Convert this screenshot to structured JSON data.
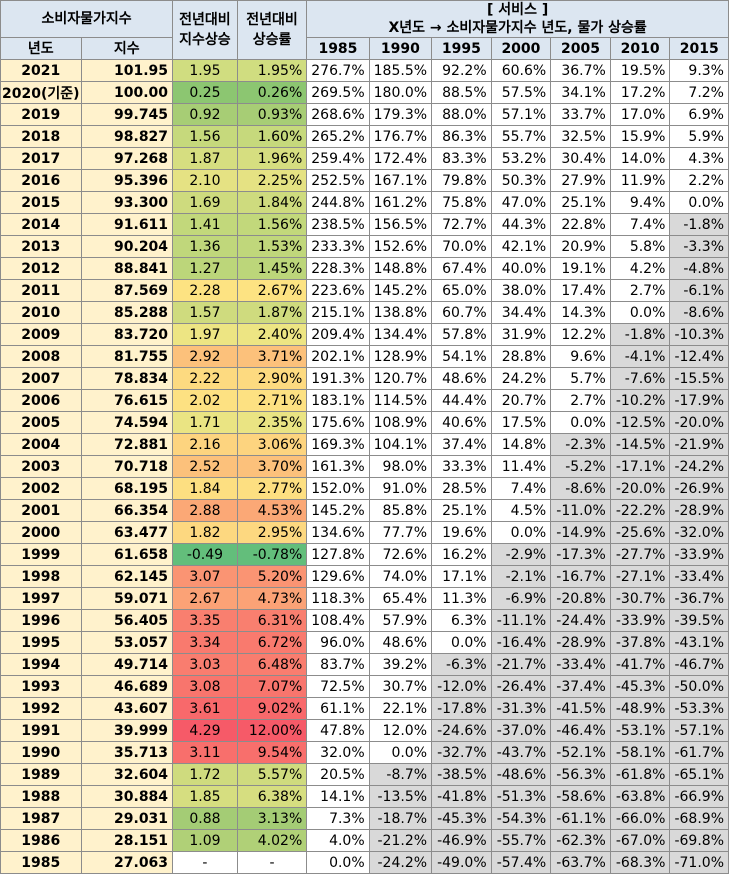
{
  "header": {
    "index_title": "소비자물가지수",
    "index_change_title": "전년대비\n지수상승",
    "rate_change_title": "전년대비\n상승률",
    "service_title": "[ 서비스 ]",
    "service_subtitle": "X년도 → 소비자물가지수 년도, 물가 상승률",
    "year_label": "년도",
    "index_label": "지수",
    "base_years": [
      "1985",
      "1990",
      "1995",
      "2000",
      "2005",
      "2010",
      "2015"
    ]
  },
  "rows": [
    {
      "year": "2021",
      "index": "101.95",
      "d": "1.95",
      "r": "1.95%",
      "bg": "#d0dd80",
      "v": [
        "276.7%",
        "185.5%",
        "92.2%",
        "60.6%",
        "36.7%",
        "19.5%",
        "9.3%"
      ]
    },
    {
      "year": "2020(기준)",
      "index": "100.00",
      "d": "0.25",
      "r": "0.26%",
      "bg": "#8cc671",
      "v": [
        "269.5%",
        "180.0%",
        "88.5%",
        "57.5%",
        "34.1%",
        "17.2%",
        "7.2%"
      ]
    },
    {
      "year": "2019",
      "index": "99.745",
      "d": "0.92",
      "r": "0.93%",
      "bg": "#a7cd75",
      "v": [
        "268.6%",
        "179.3%",
        "88.0%",
        "57.1%",
        "33.7%",
        "17.0%",
        "6.9%"
      ]
    },
    {
      "year": "2018",
      "index": "98.827",
      "d": "1.56",
      "r": "1.60%",
      "bg": "#c6d97c",
      "v": [
        "265.2%",
        "176.7%",
        "86.3%",
        "55.7%",
        "32.5%",
        "15.9%",
        "5.9%"
      ]
    },
    {
      "year": "2017",
      "index": "97.268",
      "d": "1.87",
      "r": "1.96%",
      "bg": "#d6de80",
      "v": [
        "259.4%",
        "172.4%",
        "83.3%",
        "53.2%",
        "30.4%",
        "14.0%",
        "4.3%"
      ]
    },
    {
      "year": "2016",
      "index": "95.396",
      "d": "2.10",
      "r": "2.25%",
      "bg": "#e5e283",
      "v": [
        "252.5%",
        "167.1%",
        "79.8%",
        "50.3%",
        "27.9%",
        "11.9%",
        "2.2%"
      ]
    },
    {
      "year": "2015",
      "index": "93.300",
      "d": "1.69",
      "r": "1.84%",
      "bg": "#cedb7e",
      "v": [
        "244.8%",
        "161.2%",
        "75.8%",
        "47.0%",
        "25.1%",
        "9.4%",
        "0.0%"
      ]
    },
    {
      "year": "2014",
      "index": "91.611",
      "d": "1.41",
      "r": "1.56%",
      "bg": "#c2d87b",
      "v": [
        "238.5%",
        "156.5%",
        "72.7%",
        "44.3%",
        "22.8%",
        "7.4%",
        "-1.8%"
      ]
    },
    {
      "year": "2013",
      "index": "90.204",
      "d": "1.36",
      "r": "1.53%",
      "bg": "#c0d77b",
      "v": [
        "233.3%",
        "152.6%",
        "70.0%",
        "42.1%",
        "20.9%",
        "5.8%",
        "-3.3%"
      ]
    },
    {
      "year": "2012",
      "index": "88.841",
      "d": "1.27",
      "r": "1.45%",
      "bg": "#bcd67a",
      "v": [
        "228.3%",
        "148.8%",
        "67.4%",
        "40.0%",
        "19.1%",
        "4.2%",
        "-4.8%"
      ]
    },
    {
      "year": "2011",
      "index": "87.569",
      "d": "2.28",
      "r": "2.67%",
      "bg": "#fde382",
      "v": [
        "223.6%",
        "145.2%",
        "65.0%",
        "38.0%",
        "17.4%",
        "2.7%",
        "-6.1%"
      ]
    },
    {
      "year": "2010",
      "index": "85.288",
      "d": "1.57",
      "r": "1.87%",
      "bg": "#cfdb7e",
      "v": [
        "215.1%",
        "138.8%",
        "60.7%",
        "34.4%",
        "14.3%",
        "0.0%",
        "-8.6%"
      ]
    },
    {
      "year": "2009",
      "index": "83.720",
      "d": "1.97",
      "r": "2.40%",
      "bg": "#ede583",
      "v": [
        "209.4%",
        "134.4%",
        "57.8%",
        "31.9%",
        "12.2%",
        "-1.8%",
        "-10.3%"
      ]
    },
    {
      "year": "2008",
      "index": "81.755",
      "d": "2.92",
      "r": "3.71%",
      "bg": "#fcc17b",
      "v": [
        "202.1%",
        "128.9%",
        "54.1%",
        "28.8%",
        "9.6%",
        "-4.1%",
        "-12.4%"
      ]
    },
    {
      "year": "2007",
      "index": "78.834",
      "d": "2.22",
      "r": "2.90%",
      "bg": "#fdda80",
      "v": [
        "191.3%",
        "120.7%",
        "48.6%",
        "24.2%",
        "5.7%",
        "-7.6%",
        "-15.5%"
      ]
    },
    {
      "year": "2006",
      "index": "76.615",
      "d": "2.02",
      "r": "2.71%",
      "bg": "#fde182",
      "v": [
        "183.1%",
        "114.5%",
        "44.4%",
        "20.7%",
        "2.7%",
        "-10.2%",
        "-17.9%"
      ]
    },
    {
      "year": "2005",
      "index": "74.594",
      "d": "1.71",
      "r": "2.35%",
      "bg": "#eae483",
      "v": [
        "175.6%",
        "108.9%",
        "40.6%",
        "17.5%",
        "0.0%",
        "-12.5%",
        "-20.0%"
      ]
    },
    {
      "year": "2004",
      "index": "72.881",
      "d": "2.16",
      "r": "3.06%",
      "bg": "#fdd47f",
      "v": [
        "169.3%",
        "104.1%",
        "37.4%",
        "14.8%",
        "-2.3%",
        "-14.5%",
        "-21.9%"
      ]
    },
    {
      "year": "2003",
      "index": "70.718",
      "d": "2.52",
      "r": "3.70%",
      "bg": "#fcc17b",
      "v": [
        "161.3%",
        "98.0%",
        "33.3%",
        "11.4%",
        "-5.2%",
        "-17.1%",
        "-24.2%"
      ]
    },
    {
      "year": "2002",
      "index": "68.195",
      "d": "1.84",
      "r": "2.77%",
      "bg": "#fddf81",
      "v": [
        "152.0%",
        "91.0%",
        "28.5%",
        "7.4%",
        "-8.6%",
        "-20.0%",
        "-26.9%"
      ]
    },
    {
      "year": "2001",
      "index": "66.354",
      "d": "2.88",
      "r": "4.53%",
      "bg": "#fba876",
      "v": [
        "145.2%",
        "85.8%",
        "25.1%",
        "4.5%",
        "-11.0%",
        "-22.2%",
        "-28.9%"
      ]
    },
    {
      "year": "2000",
      "index": "63.477",
      "d": "1.82",
      "r": "2.95%",
      "bg": "#fdd880",
      "v": [
        "134.6%",
        "77.7%",
        "19.6%",
        "0.0%",
        "-14.9%",
        "-25.6%",
        "-32.0%"
      ]
    },
    {
      "year": "1999",
      "index": "61.658",
      "d": "-0.49",
      "r": "-0.78%",
      "bg": "#63be7b",
      "v": [
        "127.8%",
        "72.6%",
        "16.2%",
        "-2.9%",
        "-17.3%",
        "-27.7%",
        "-33.9%"
      ]
    },
    {
      "year": "1998",
      "index": "62.145",
      "d": "3.07",
      "r": "5.20%",
      "bg": "#fa9473",
      "v": [
        "129.6%",
        "74.0%",
        "17.1%",
        "-2.1%",
        "-16.7%",
        "-27.1%",
        "-33.4%"
      ]
    },
    {
      "year": "1997",
      "index": "59.071",
      "d": "2.67",
      "r": "4.73%",
      "bg": "#fba276",
      "v": [
        "118.3%",
        "65.4%",
        "11.3%",
        "-6.9%",
        "-20.8%",
        "-30.7%",
        "-36.7%"
      ]
    },
    {
      "year": "1996",
      "index": "56.405",
      "d": "3.35",
      "r": "6.31%",
      "bg": "#f97f6f",
      "v": [
        "108.4%",
        "57.9%",
        "6.3%",
        "-11.1%",
        "-24.4%",
        "-33.9%",
        "-39.5%"
      ]
    },
    {
      "year": "1995",
      "index": "53.057",
      "d": "3.34",
      "r": "6.72%",
      "bg": "#f97a6e",
      "v": [
        "96.0%",
        "48.6%",
        "0.0%",
        "-16.4%",
        "-28.9%",
        "-37.8%",
        "-43.1%"
      ]
    },
    {
      "year": "1994",
      "index": "49.714",
      "d": "3.03",
      "r": "6.48%",
      "bg": "#f97d6f",
      "v": [
        "83.7%",
        "39.2%",
        "-6.3%",
        "-21.7%",
        "-33.4%",
        "-41.7%",
        "-46.7%"
      ]
    },
    {
      "year": "1993",
      "index": "46.689",
      "d": "3.08",
      "r": "7.07%",
      "bg": "#f8756d",
      "v": [
        "72.5%",
        "30.7%",
        "-12.0%",
        "-26.4%",
        "-37.4%",
        "-45.3%",
        "-50.0%"
      ]
    },
    {
      "year": "1992",
      "index": "43.607",
      "d": "3.61",
      "r": "9.02%",
      "bg": "#f8696b",
      "v": [
        "61.1%",
        "22.1%",
        "-17.8%",
        "-31.3%",
        "-41.5%",
        "-48.9%",
        "-53.3%"
      ]
    },
    {
      "year": "1991",
      "index": "39.999",
      "d": "4.29",
      "r": "12.00%",
      "bg": "#f65a68",
      "v": [
        "47.8%",
        "12.0%",
        "-24.6%",
        "-37.0%",
        "-46.4%",
        "-53.1%",
        "-57.1%"
      ]
    },
    {
      "year": "1990",
      "index": "35.713",
      "d": "3.11",
      "r": "9.54%",
      "bg": "#f86f6c",
      "v": [
        "32.0%",
        "0.0%",
        "-32.7%",
        "-43.7%",
        "-52.1%",
        "-58.1%",
        "-61.7%"
      ]
    },
    {
      "year": "1989",
      "index": "32.604",
      "d": "1.72",
      "r": "5.57%",
      "bg": "#cfdb7e",
      "v": [
        "20.5%",
        "-8.7%",
        "-38.5%",
        "-48.6%",
        "-56.3%",
        "-61.8%",
        "-65.1%"
      ]
    },
    {
      "year": "1988",
      "index": "30.884",
      "d": "1.85",
      "r": "6.38%",
      "bg": "#d6de80",
      "v": [
        "14.1%",
        "-13.5%",
        "-41.8%",
        "-51.3%",
        "-58.6%",
        "-63.8%",
        "-66.9%"
      ]
    },
    {
      "year": "1987",
      "index": "29.031",
      "d": "0.88",
      "r": "3.13%",
      "bg": "#a4cc75",
      "v": [
        "7.3%",
        "-18.7%",
        "-45.3%",
        "-54.3%",
        "-61.1%",
        "-66.0%",
        "-68.9%"
      ]
    },
    {
      "year": "1986",
      "index": "28.151",
      "d": "1.09",
      "r": "4.02%",
      "bg": "#b0d077",
      "v": [
        "4.0%",
        "-21.2%",
        "-46.9%",
        "-55.7%",
        "-62.3%",
        "-67.0%",
        "-69.8%"
      ]
    },
    {
      "year": "1985",
      "index": "27.063",
      "d": "-",
      "r": "-",
      "bg": "#ffffff",
      "v": [
        "0.0%",
        "-24.2%",
        "-49.0%",
        "-57.4%",
        "-63.7%",
        "-68.3%",
        "-71.0%"
      ]
    }
  ]
}
